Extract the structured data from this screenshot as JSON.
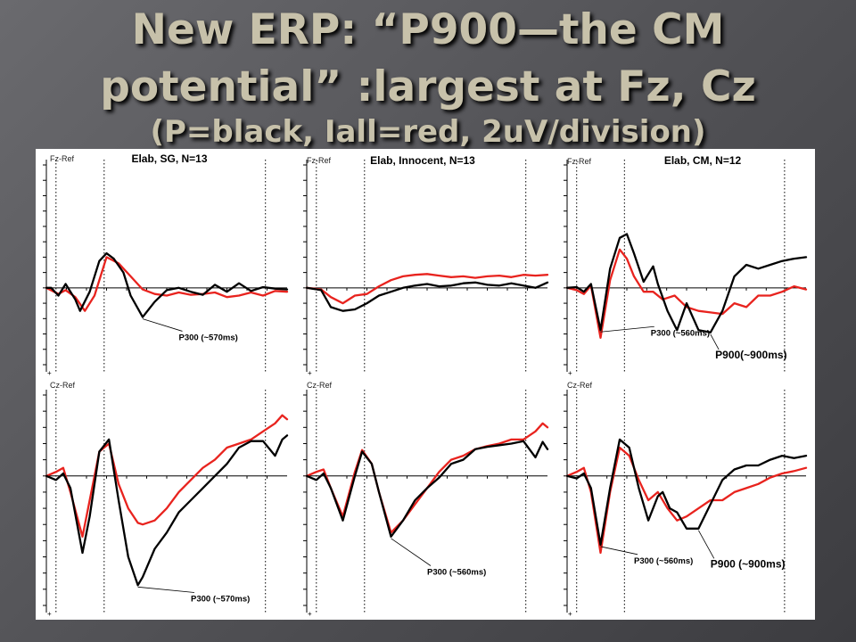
{
  "slide": {
    "title_line1": "New ERP: “P900—the CM",
    "title_line2": "potential” :largest at Fz, Cz",
    "title_line3": "(P=black, Iall=red, 2uV/division)"
  },
  "colors": {
    "P": "#000000",
    "Iall": "#e8231e",
    "title": "#c7c1aa"
  },
  "chart_data": [
    {
      "type": "line",
      "panel": "top-left",
      "title": "Elab, SG, N=13",
      "channel": "Fz-Ref",
      "y_units": "uV",
      "y_per_division": 2,
      "ylim": [
        -10,
        16
      ],
      "grid": false,
      "annotations": [
        {
          "text": "P300 (~570ms)",
          "x": 0.55,
          "y": -6.8,
          "style": "small"
        }
      ],
      "series": [
        {
          "name": "P",
          "color": "#000000",
          "x": [
            0,
            0.02,
            0.05,
            0.08,
            0.12,
            0.14,
            0.18,
            0.22,
            0.25,
            0.28,
            0.32,
            0.35,
            0.4,
            0.45,
            0.5,
            0.55,
            0.6,
            0.65,
            0.7,
            0.75,
            0.8,
            0.85,
            0.9,
            0.95,
            1
          ],
          "y": [
            0,
            0,
            -1,
            0.5,
            -1.5,
            -3,
            -0.5,
            3.5,
            4.5,
            3.8,
            2,
            -1,
            -3.8,
            -1.8,
            -0.3,
            0,
            -0.5,
            -0.9,
            0.4,
            -0.5,
            0.6,
            -0.4,
            0.1,
            -0.1,
            -0.2
          ]
        },
        {
          "name": "Iall",
          "color": "#e8231e",
          "x": [
            0,
            0.05,
            0.08,
            0.12,
            0.16,
            0.2,
            0.25,
            0.3,
            0.35,
            0.4,
            0.45,
            0.5,
            0.55,
            0.6,
            0.65,
            0.7,
            0.75,
            0.8,
            0.85,
            0.9,
            0.95,
            1
          ],
          "y": [
            0,
            -0.8,
            -0.3,
            -1.2,
            -3,
            -1,
            4,
            3.2,
            1.5,
            -0.2,
            -0.8,
            -1,
            -0.6,
            -0.9,
            -0.8,
            -0.6,
            -1.2,
            -1,
            -0.6,
            -1,
            -0.4,
            -0.5
          ]
        }
      ]
    },
    {
      "type": "line",
      "panel": "top-middle",
      "title": "Elab, Innocent, N=13",
      "channel": "Fz-Ref",
      "y_units": "uV",
      "y_per_division": 2,
      "ylim": [
        -10,
        16
      ],
      "grid": false,
      "annotations": [],
      "series": [
        {
          "name": "P",
          "color": "#000000",
          "x": [
            0,
            0.06,
            0.1,
            0.15,
            0.2,
            0.25,
            0.3,
            0.35,
            0.4,
            0.45,
            0.5,
            0.55,
            0.6,
            0.65,
            0.7,
            0.75,
            0.8,
            0.85,
            0.9,
            0.95,
            1
          ],
          "y": [
            0,
            -0.3,
            -2.5,
            -3,
            -2.8,
            -2,
            -1,
            -0.5,
            0,
            0.3,
            0.5,
            0.2,
            0.3,
            0.6,
            0.7,
            0.4,
            0.3,
            0.6,
            0.3,
            0,
            0.7
          ]
        },
        {
          "name": "Iall",
          "color": "#e8231e",
          "x": [
            0,
            0.06,
            0.1,
            0.15,
            0.2,
            0.25,
            0.3,
            0.35,
            0.4,
            0.45,
            0.5,
            0.55,
            0.6,
            0.65,
            0.7,
            0.75,
            0.8,
            0.85,
            0.9,
            0.95,
            1
          ],
          "y": [
            0,
            -0.2,
            -1.2,
            -2,
            -1,
            -0.8,
            0.2,
            1,
            1.5,
            1.7,
            1.8,
            1.6,
            1.4,
            1.5,
            1.3,
            1.5,
            1.6,
            1.4,
            1.7,
            1.6,
            1.7
          ]
        }
      ]
    },
    {
      "type": "line",
      "panel": "top-right",
      "title": "Elab, CM, N=12",
      "channel": "Fz-Ref",
      "y_units": "uV",
      "y_per_division": 2,
      "ylim": [
        -10,
        16
      ],
      "grid": false,
      "annotations": [
        {
          "text": "P300 (~560ms)",
          "x": 0.35,
          "y": -6.2,
          "style": "small"
        },
        {
          "text": "P900(~900ms)",
          "x": 0.62,
          "y": -9.2,
          "style": "big"
        }
      ],
      "series": [
        {
          "name": "P",
          "color": "#000000",
          "x": [
            0,
            0.04,
            0.07,
            0.1,
            0.14,
            0.18,
            0.22,
            0.25,
            0.28,
            0.32,
            0.36,
            0.38,
            0.42,
            0.46,
            0.5,
            0.55,
            0.6,
            0.65,
            0.7,
            0.75,
            0.8,
            0.85,
            0.9,
            0.95,
            1
          ],
          "y": [
            0,
            0.1,
            -0.5,
            0.5,
            -5.5,
            2.5,
            6.5,
            7,
            4.5,
            0.8,
            2.8,
            0.5,
            -3,
            -5.5,
            -2,
            -5.5,
            -5.8,
            -3,
            1.5,
            3,
            2.5,
            3,
            3.5,
            3.8,
            4
          ]
        },
        {
          "name": "Iall",
          "color": "#e8231e",
          "x": [
            0,
            0.04,
            0.07,
            0.1,
            0.14,
            0.18,
            0.22,
            0.25,
            0.28,
            0.32,
            0.36,
            0.4,
            0.45,
            0.5,
            0.55,
            0.6,
            0.65,
            0.7,
            0.75,
            0.8,
            0.85,
            0.9,
            0.95,
            1
          ],
          "y": [
            0,
            -0.3,
            -0.8,
            0.3,
            -6.5,
            1,
            5,
            3.8,
            1.5,
            -0.5,
            -0.5,
            -1.5,
            -1,
            -2.5,
            -3,
            -3.2,
            -3.4,
            -2,
            -2.5,
            -1,
            -1,
            -0.5,
            0.2,
            -0.2
          ]
        }
      ]
    },
    {
      "type": "line",
      "panel": "bottom-left",
      "title": "",
      "channel": "Cz-Ref",
      "y_units": "uV",
      "y_per_division": 2,
      "ylim": [
        -16,
        10
      ],
      "grid": false,
      "annotations": [
        {
          "text": "P300 (~570ms)",
          "x": 0.6,
          "y": -15.5,
          "style": "small"
        }
      ],
      "series": [
        {
          "name": "P",
          "color": "#000000",
          "x": [
            0,
            0.04,
            0.07,
            0.1,
            0.15,
            0.18,
            0.22,
            0.26,
            0.3,
            0.34,
            0.38,
            0.4,
            0.45,
            0.5,
            0.55,
            0.6,
            0.65,
            0.7,
            0.75,
            0.8,
            0.85,
            0.9,
            0.95,
            0.98,
            1
          ],
          "y": [
            0,
            -0.5,
            0.3,
            -1.5,
            -9.5,
            -5,
            3,
            4.5,
            -3,
            -10,
            -13.5,
            -12.5,
            -9,
            -7,
            -4.5,
            -3,
            -1.5,
            0,
            1.5,
            3.5,
            4.3,
            4.3,
            2.5,
            4.5,
            5
          ]
        },
        {
          "name": "Iall",
          "color": "#e8231e",
          "x": [
            0,
            0.04,
            0.07,
            0.1,
            0.15,
            0.18,
            0.22,
            0.26,
            0.3,
            0.34,
            0.38,
            0.4,
            0.45,
            0.5,
            0.55,
            0.6,
            0.65,
            0.7,
            0.75,
            0.8,
            0.85,
            0.9,
            0.95,
            0.98,
            1
          ],
          "y": [
            0,
            0.5,
            1,
            -2,
            -7.5,
            -3,
            3,
            4,
            -1,
            -4,
            -5.8,
            -6,
            -5.5,
            -4,
            -2,
            -0.5,
            1,
            2,
            3.5,
            4,
            4.5,
            5.5,
            6.5,
            7.5,
            7
          ]
        }
      ]
    },
    {
      "type": "line",
      "panel": "bottom-middle",
      "title": "",
      "channel": "Cz-Ref",
      "y_units": "uV",
      "y_per_division": 2,
      "ylim": [
        -16,
        10
      ],
      "grid": false,
      "annotations": [
        {
          "text": "P300 (~560ms)",
          "x": 0.5,
          "y": -12.2,
          "style": "small"
        }
      ],
      "series": [
        {
          "name": "P",
          "color": "#000000",
          "x": [
            0,
            0.04,
            0.07,
            0.1,
            0.15,
            0.2,
            0.23,
            0.27,
            0.3,
            0.35,
            0.4,
            0.45,
            0.5,
            0.55,
            0.6,
            0.65,
            0.7,
            0.75,
            0.8,
            0.85,
            0.9,
            0.95,
            0.98,
            1
          ],
          "y": [
            0,
            -0.5,
            0.3,
            -1.5,
            -5.5,
            0,
            3,
            1.5,
            -2,
            -7.5,
            -5.5,
            -3,
            -1.5,
            -0.2,
            1.5,
            2,
            3.3,
            3.6,
            3.8,
            4,
            4.3,
            2.3,
            4.2,
            3.3
          ]
        },
        {
          "name": "Iall",
          "color": "#e8231e",
          "x": [
            0,
            0.04,
            0.07,
            0.1,
            0.15,
            0.2,
            0.23,
            0.27,
            0.3,
            0.35,
            0.4,
            0.45,
            0.5,
            0.55,
            0.6,
            0.65,
            0.7,
            0.75,
            0.8,
            0.85,
            0.9,
            0.95,
            0.98,
            1
          ],
          "y": [
            0,
            0.5,
            0.8,
            -1.5,
            -5,
            0.5,
            3.2,
            1.5,
            -2,
            -7,
            -5.5,
            -3.5,
            -1.5,
            0.5,
            2,
            2.5,
            3.3,
            3.7,
            4,
            4.5,
            4.5,
            5.5,
            6.5,
            6
          ]
        }
      ]
    },
    {
      "type": "line",
      "panel": "bottom-right",
      "title": "",
      "channel": "Cz-Ref",
      "y_units": "uV",
      "y_per_division": 2,
      "ylim": [
        -16,
        10
      ],
      "grid": false,
      "annotations": [
        {
          "text": "P300 (~560ms)",
          "x": 0.28,
          "y": -10.8,
          "style": "small"
        },
        {
          "text": "P900 (~900ms)",
          "x": 0.6,
          "y": -11.3,
          "style": "big"
        }
      ],
      "series": [
        {
          "name": "P",
          "color": "#000000",
          "x": [
            0,
            0.04,
            0.07,
            0.1,
            0.14,
            0.18,
            0.22,
            0.26,
            0.3,
            0.34,
            0.38,
            0.4,
            0.43,
            0.46,
            0.5,
            0.55,
            0.6,
            0.65,
            0.7,
            0.75,
            0.8,
            0.85,
            0.9,
            0.95,
            1
          ],
          "y": [
            0,
            -0.3,
            0.3,
            -1.5,
            -8.5,
            -1.5,
            4.5,
            3.5,
            -1.5,
            -5.5,
            -2.5,
            -2,
            -4,
            -4.5,
            -6.5,
            -6.5,
            -3.5,
            -0.5,
            0.8,
            1.3,
            1.3,
            2,
            2.5,
            2.2,
            2.5
          ]
        },
        {
          "name": "Iall",
          "color": "#e8231e",
          "x": [
            0,
            0.04,
            0.07,
            0.1,
            0.14,
            0.18,
            0.22,
            0.26,
            0.3,
            0.34,
            0.38,
            0.42,
            0.46,
            0.5,
            0.55,
            0.6,
            0.65,
            0.7,
            0.75,
            0.8,
            0.85,
            0.9,
            0.95,
            1
          ],
          "y": [
            0,
            0.5,
            1,
            -2,
            -9.5,
            -2,
            3.5,
            2.5,
            -0.5,
            -3,
            -2,
            -4,
            -5.5,
            -5,
            -4,
            -3,
            -3,
            -2,
            -1.5,
            -1,
            -0.2,
            0.3,
            0.6,
            1
          ]
        }
      ]
    }
  ]
}
